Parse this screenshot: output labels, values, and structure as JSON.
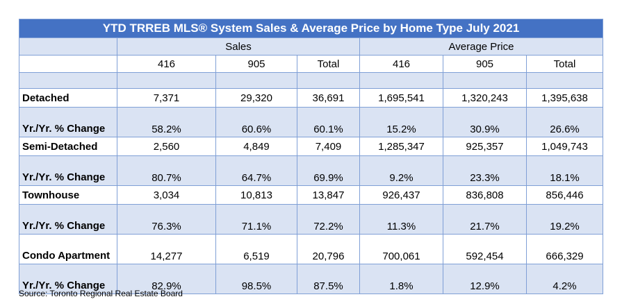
{
  "title": "YTD TRREB MLS® System Sales & Average Price by Home Type July 2021",
  "groups": {
    "sales": "Sales",
    "avg_price": "Average Price"
  },
  "columns": [
    "416",
    "905",
    "Total",
    "416",
    "905",
    "Total"
  ],
  "rows": [
    {
      "label": "Detached",
      "values": [
        "7,371",
        "29,320",
        "36,691",
        "1,695,541",
        "1,320,243",
        "1,395,638"
      ]
    },
    {
      "label": "Yr./Yr. % Change",
      "values": [
        "58.2%",
        "60.6%",
        "60.1%",
        "15.2%",
        "30.9%",
        "26.6%"
      ]
    },
    {
      "label": "Semi-Detached",
      "values": [
        "2,560",
        "4,849",
        "7,409",
        "1,285,347",
        "925,357",
        "1,049,743"
      ]
    },
    {
      "label": "Yr./Yr. % Change",
      "values": [
        "80.7%",
        "64.7%",
        "69.9%",
        "9.2%",
        "23.3%",
        "18.1%"
      ]
    },
    {
      "label": "Townhouse",
      "values": [
        "3,034",
        "10,813",
        "13,847",
        "926,437",
        "836,808",
        "856,446"
      ]
    },
    {
      "label": "Yr./Yr. % Change",
      "values": [
        "76.3%",
        "71.1%",
        "72.2%",
        "11.3%",
        "21.7%",
        "19.2%"
      ]
    },
    {
      "label": "Condo Apartment",
      "values": [
        "14,277",
        "6,519",
        "20,796",
        "700,061",
        "592,454",
        "666,329"
      ]
    },
    {
      "label": "Yr./Yr. % Change",
      "values": [
        "82.9%",
        "98.5%",
        "87.5%",
        "1.8%",
        "12.9%",
        "4.2%"
      ]
    }
  ],
  "source": "Source: Toronto Regional Real Estate Board",
  "colors": {
    "header": "#4472c4",
    "shade": "#dae3f3",
    "border": "#7f9fd6"
  }
}
